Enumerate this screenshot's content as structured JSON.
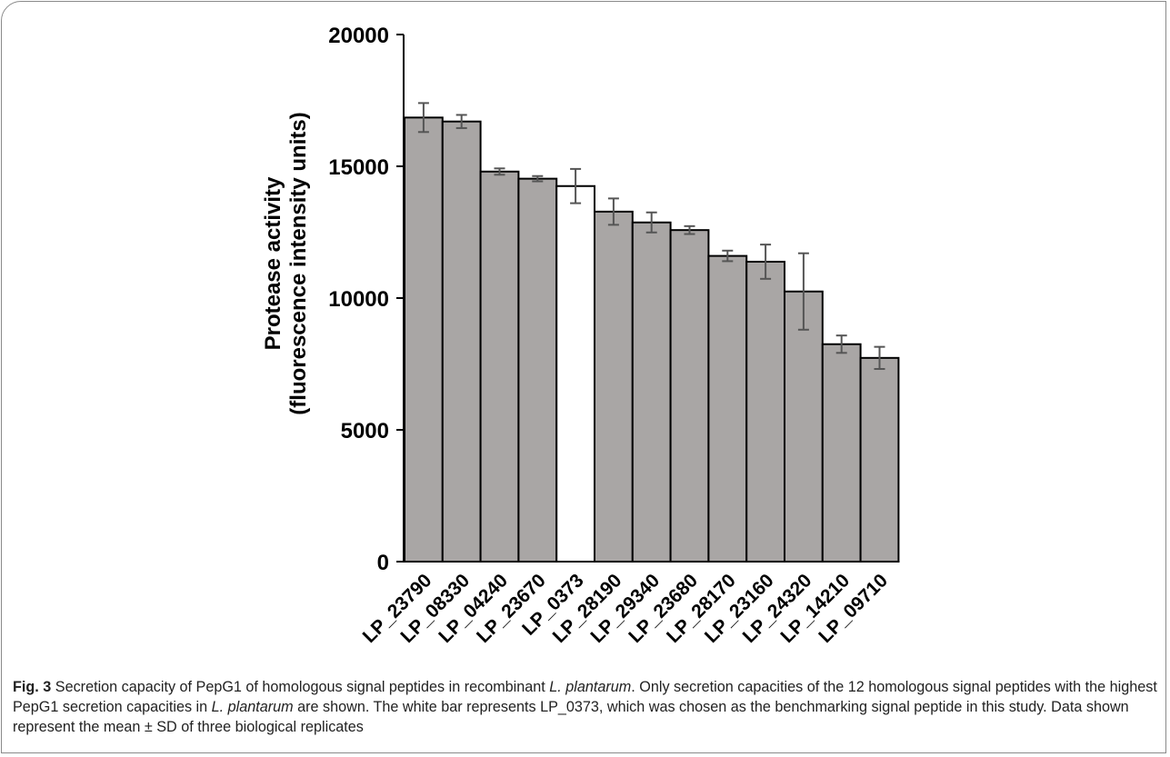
{
  "chart_data": {
    "type": "bar",
    "ylabel_line1": "Protease activity",
    "ylabel_line2": "(fluorescence intensity units)",
    "ylim": [
      0,
      20000
    ],
    "yticks": [
      0,
      5000,
      10000,
      15000,
      20000
    ],
    "categories": [
      "LP_23790",
      "LP_08330",
      "LP_04240",
      "LP_23670",
      "LP_0373",
      "LP_28190",
      "LP_29340",
      "LP_23680",
      "LP_28170",
      "LP_23160",
      "LP_24320",
      "LP_14210",
      "LP_09710"
    ],
    "values": [
      16850,
      16700,
      14800,
      14530,
      14250,
      13280,
      12870,
      12580,
      11600,
      11380,
      10250,
      8250,
      7730
    ],
    "errors": [
      550,
      250,
      120,
      100,
      650,
      500,
      380,
      150,
      200,
      650,
      1450,
      330,
      420
    ],
    "bar_colors": [
      "#a9a6a5",
      "#a9a6a5",
      "#a9a6a5",
      "#a9a6a5",
      "#ffffff",
      "#a9a6a5",
      "#a9a6a5",
      "#a9a6a5",
      "#a9a6a5",
      "#a9a6a5",
      "#a9a6a5",
      "#a9a6a5",
      "#a9a6a5"
    ],
    "error_color": "#555555"
  },
  "caption": {
    "label": "Fig. 3",
    "text_1": "  Secretion capacity of PepG1 of homologous signal peptides in recombinant ",
    "species_1": "L. plantarum",
    "text_2": ". Only secretion capacities of the 12 homologous signal peptides with the highest PepG1 secretion capacities in ",
    "species_2": "L. plantarum",
    "text_3": " are shown. The white bar represents LP_0373, which was chosen as the benchmarking signal peptide in this study. Data shown represent the mean ± SD of three biological replicates"
  }
}
